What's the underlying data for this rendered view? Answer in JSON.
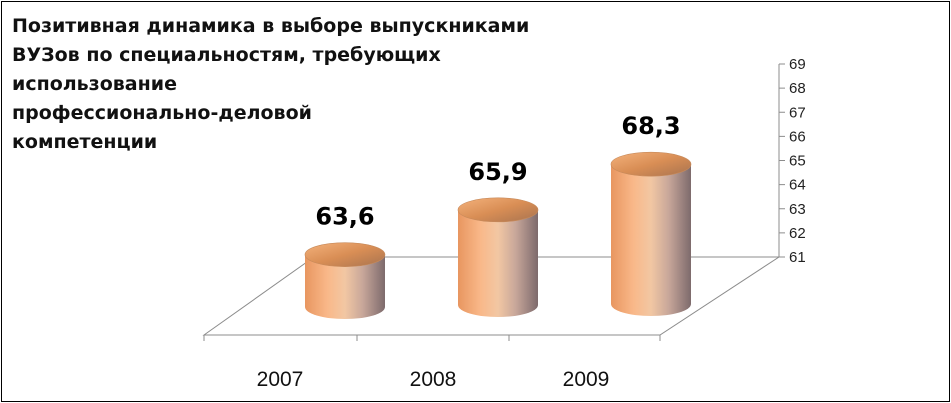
{
  "chart_data": {
    "type": "bar",
    "title": "Позитивная динамика  в выборе выпускниками\n ВУЗов по специальностям, требующих использование\nпрофессионально-деловой\nкомпетенции",
    "categories": [
      "2007",
      "2008",
      "2009"
    ],
    "values": [
      63.6,
      65.9,
      68.3
    ],
    "data_labels": [
      "63,6",
      "65,9",
      "68,3"
    ],
    "y_ticks": [
      "61",
      "62",
      "63",
      "64",
      "65",
      "66",
      "67",
      "68",
      "69"
    ],
    "ylim": [
      61,
      69
    ],
    "y_axis_side": "right",
    "grid": false,
    "legend": "none",
    "bar_shape": "3d-cylinder",
    "colors": {
      "bar_light": "#f7c89a",
      "bar_mid": "#f3a46c",
      "bar_dark": "#8a7472",
      "axis": "#8c8c8c",
      "text": "#000000"
    }
  }
}
